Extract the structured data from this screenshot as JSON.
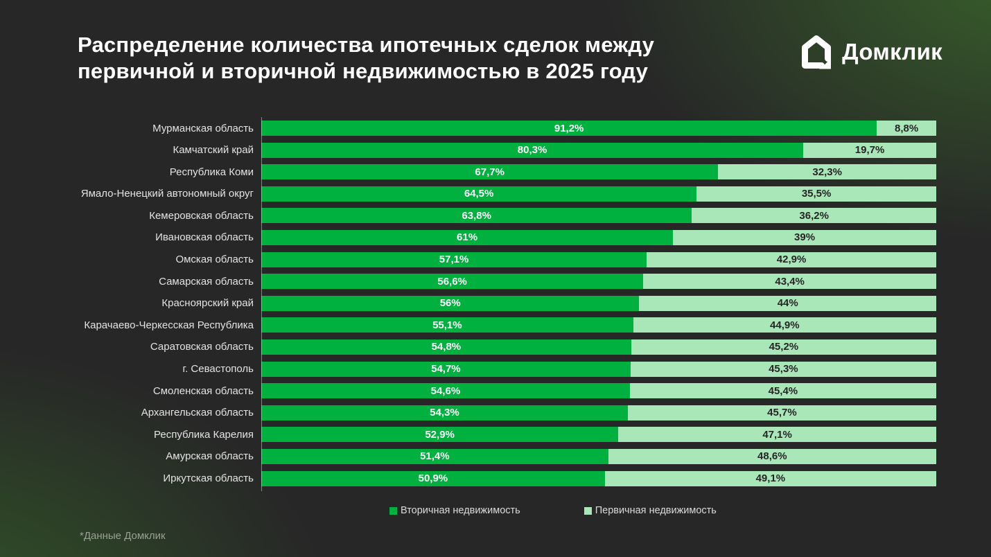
{
  "title": {
    "line1": "Распределение количества ипотечных сделок между",
    "line2": "первичной и вторичной недвижимостью в 2025 году"
  },
  "logo": {
    "text": "Домклик"
  },
  "footnote": "*Данные Домклик",
  "colors": {
    "secondary": "#00B140",
    "primary": "#A9E6B8",
    "background": "#272727"
  },
  "legend": [
    {
      "label": "Вторичная недвижимость",
      "color": "#00B140"
    },
    {
      "label": "Первичная недвижимость",
      "color": "#A9E6B8"
    }
  ],
  "chart_data": {
    "type": "bar",
    "orientation": "horizontal",
    "stacked": true,
    "unit": "%",
    "xlim": [
      0,
      100
    ],
    "grid": false,
    "legend_position": "bottom",
    "categories": [
      "Мурманская область",
      "Камчатский край",
      "Республика Коми",
      "Ямало-Ненецкий автономный округ",
      "Кемеровская область",
      "Ивановская область",
      "Омская область",
      "Самарская область",
      "Красноярский край",
      "Карачаево-Черкесская Республика",
      "Саратовская область",
      "г. Севастополь",
      "Смоленская область",
      "Архангельская область",
      "Республика Карелия",
      "Амурская область",
      "Иркутская область"
    ],
    "series": [
      {
        "name": "Вторичная недвижимость",
        "color": "#00B140",
        "values": [
          91.2,
          80.3,
          67.7,
          64.5,
          63.8,
          61,
          57.1,
          56.6,
          56,
          55.1,
          54.8,
          54.7,
          54.6,
          54.3,
          52.9,
          51.4,
          50.9
        ],
        "labels": [
          "91,2%",
          "80,3%",
          "67,7%",
          "64,5%",
          "63,8%",
          "61%",
          "57,1%",
          "56,6%",
          "56%",
          "55,1%",
          "54,8%",
          "54,7%",
          "54,6%",
          "54,3%",
          "52,9%",
          "51,4%",
          "50,9%"
        ]
      },
      {
        "name": "Первичная недвижимость",
        "color": "#A9E6B8",
        "values": [
          8.8,
          19.7,
          32.3,
          35.5,
          36.2,
          39,
          42.9,
          43.4,
          44,
          44.9,
          45.2,
          45.3,
          45.4,
          45.7,
          47.1,
          48.6,
          49.1
        ],
        "labels": [
          "8,8%",
          "19,7%",
          "32,3%",
          "35,5%",
          "36,2%",
          "39%",
          "42,9%",
          "43,4%",
          "44%",
          "44,9%",
          "45,2%",
          "45,3%",
          "45,4%",
          "45,7%",
          "47,1%",
          "48,6%",
          "49,1%"
        ]
      }
    ]
  }
}
